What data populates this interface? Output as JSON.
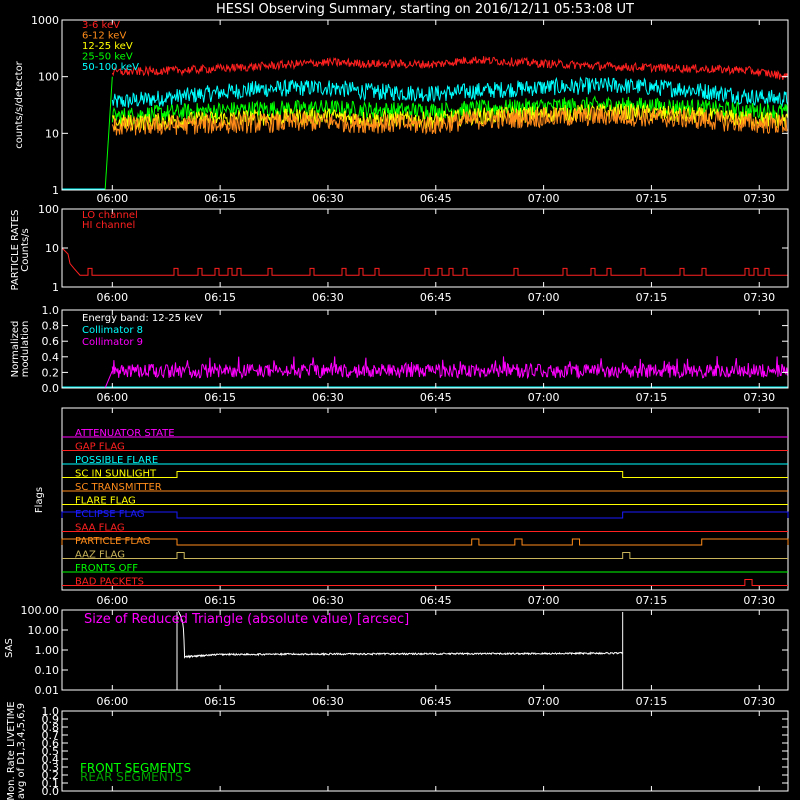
{
  "title": "HESSI Observing Summary, starting on 2016/12/11 05:53:08 UT",
  "colors": {
    "bg": "#000000",
    "axis": "#ffffff",
    "red": "#ff2020",
    "orange": "#ff8c1a",
    "yellow": "#ffff00",
    "green": "#00ff00",
    "cyan": "#00ffff",
    "magenta": "#ff00ff",
    "blue": "#1a1aff",
    "olive": "#c8b45a",
    "white": "#ffffff",
    "darkgreen": "#00a000"
  },
  "time_axis": {
    "start": "05:53",
    "end": "07:34",
    "tick_labels": [
      "06:00",
      "06:15",
      "06:30",
      "06:45",
      "07:00",
      "07:15",
      "07:30"
    ]
  },
  "chart_data": [
    {
      "name": "rates",
      "type": "line",
      "title": "HESSI Observing Summary, starting on 2016/12/11 05:53:08 UT",
      "ylabel": "counts/s/detector",
      "yscale": "log",
      "ylim": [
        1,
        1000
      ],
      "ytick_labels": [
        "1",
        "10",
        "100",
        "1000"
      ],
      "x": [
        "05:53",
        "05:59",
        "06:00",
        "06:10",
        "06:20",
        "06:30",
        "06:35",
        "06:45",
        "06:50",
        "07:00",
        "07:10",
        "07:20",
        "07:28",
        "07:34"
      ],
      "series": [
        {
          "name": "3-6 keV",
          "color": "red",
          "values": [
            1,
            1,
            120,
            130,
            150,
            180,
            170,
            165,
            200,
            170,
            150,
            140,
            130,
            100
          ]
        },
        {
          "name": "6-12 keV",
          "color": "orange",
          "values": [
            1,
            1,
            13,
            14,
            15,
            16,
            15,
            14,
            17,
            19,
            20,
            18,
            15,
            14
          ]
        },
        {
          "name": "12-25 keV",
          "color": "yellow",
          "values": [
            1,
            1,
            15,
            17,
            19,
            20,
            18,
            17,
            20,
            22,
            24,
            21,
            18,
            17
          ]
        },
        {
          "name": "25-50 keV",
          "color": "green",
          "values": [
            1,
            1,
            20,
            24,
            27,
            28,
            26,
            25,
            27,
            30,
            32,
            29,
            25,
            24
          ]
        },
        {
          "name": "50-100 keV",
          "color": "cyan",
          "values": [
            1,
            1,
            35,
            45,
            60,
            65,
            55,
            50,
            55,
            65,
            70,
            60,
            45,
            40
          ]
        }
      ]
    },
    {
      "name": "particle_rates",
      "type": "line",
      "ylabel": "PARTICLE RATES Counts/s",
      "yscale": "log",
      "ylim": [
        1,
        100
      ],
      "ytick_labels": [
        "1",
        "10",
        "100"
      ],
      "x": [
        "05:53",
        "05:55",
        "05:56",
        "05:57",
        "05:58",
        "07:34"
      ],
      "series": [
        {
          "name": "LO channel",
          "color": "red",
          "values": [
            10,
            5,
            3,
            2,
            2,
            2
          ]
        },
        {
          "name": "HI channel",
          "color": "red",
          "values": [
            10,
            5,
            3,
            2,
            2,
            2
          ]
        }
      ]
    },
    {
      "name": "modulation",
      "type": "line",
      "ylabel": "Normalized modulation",
      "ylim": [
        0,
        1
      ],
      "ytick_labels": [
        "0.0",
        "0.2",
        "0.4",
        "0.6",
        "0.8",
        "1.0"
      ],
      "annotation": "Energy band: 12-25 keV",
      "x": [
        "05:53",
        "05:59",
        "06:00",
        "07:34"
      ],
      "series": [
        {
          "name": "Collimator 8",
          "color": "cyan",
          "values": [
            0,
            0,
            0,
            0
          ]
        },
        {
          "name": "Collimator 9",
          "color": "magenta",
          "values": [
            0,
            0,
            0.22,
            0.22
          ]
        }
      ]
    },
    {
      "name": "flags",
      "type": "line",
      "ylabel": "Flags",
      "rows": [
        {
          "label": "ATTENUATOR STATE",
          "color": "magenta",
          "high_intervals": []
        },
        {
          "label": "GAP FLAG",
          "color": "red",
          "high_intervals": []
        },
        {
          "label": "POSSIBLE FLARE",
          "color": "cyan",
          "high_intervals": []
        },
        {
          "label": "SC IN SUNLIGHT",
          "color": "yellow",
          "high_intervals": [
            [
              "06:09",
              "07:11"
            ]
          ]
        },
        {
          "label": "SC TRANSMITTER",
          "color": "orange",
          "high_intervals": []
        },
        {
          "label": "FLARE FLAG",
          "color": "yellow",
          "high_intervals": []
        },
        {
          "label": "ECLIPSE FLAG",
          "color": "blue",
          "high_intervals": [
            [
              "05:53",
              "06:09"
            ],
            [
              "07:11",
              "07:34"
            ]
          ]
        },
        {
          "label": "SAA FLAG",
          "color": "red",
          "high_intervals": []
        },
        {
          "label": "PARTICLE FLAG",
          "color": "orange",
          "high_intervals": [
            [
              "05:53",
              "06:09"
            ],
            [
              "06:50",
              "06:51"
            ],
            [
              "06:56",
              "06:57"
            ],
            [
              "07:04",
              "07:05"
            ],
            [
              "07:22",
              "07:34"
            ]
          ]
        },
        {
          "label": "AAZ FLAG",
          "color": "olive",
          "high_intervals": [
            [
              "06:09",
              "06:10"
            ],
            [
              "07:11",
              "07:12"
            ]
          ]
        },
        {
          "label": "FRONTS OFF",
          "color": "green",
          "high_intervals": []
        },
        {
          "label": "BAD PACKETS",
          "color": "red",
          "high_intervals": [
            [
              "07:28",
              "07:29"
            ]
          ]
        }
      ]
    },
    {
      "name": "sas",
      "type": "line",
      "ylabel": "SAS",
      "yscale": "log",
      "ylim": [
        0.01,
        100
      ],
      "ytick_labels": [
        "0.01",
        "0.10",
        "1.00",
        "10.00",
        "100.00"
      ],
      "annotation": "Size of Reduced Triangle (absolute value) [arcsec]",
      "x": [
        "06:09",
        "06:10",
        "06:15",
        "06:30",
        "07:00",
        "07:11"
      ],
      "series": [
        {
          "name": "SAS",
          "color": "white",
          "values": [
            100,
            0.45,
            0.6,
            0.63,
            0.66,
            0.7
          ]
        }
      ]
    },
    {
      "name": "livetime",
      "type": "line",
      "ylabel": "Mon. Rate LIVETIME avg of D1,3,4,5,6,9",
      "ylim": [
        0,
        1
      ],
      "ytick_labels": [
        "0.0",
        "0.1",
        "0.2",
        "0.3",
        "0.4",
        "0.5",
        "0.6",
        "0.7",
        "0.8",
        "0.9",
        "1.0"
      ],
      "series": [
        {
          "name": "FRONT SEGMENTS",
          "color": "green",
          "values": []
        },
        {
          "name": "REAR SEGMENTS",
          "color": "darkgreen",
          "values": []
        }
      ]
    }
  ]
}
